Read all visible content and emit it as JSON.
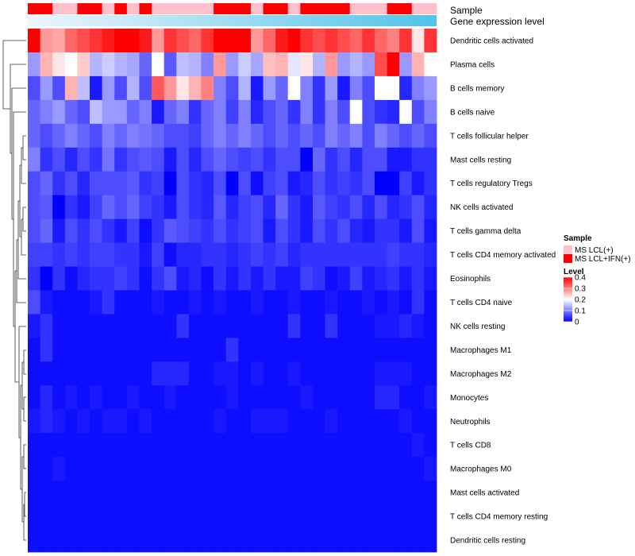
{
  "chart_data": {
    "type": "heatmap",
    "title": "",
    "annotation_labels": {
      "sample": "Sample",
      "gene_expression": "Gene expression level"
    },
    "rows": [
      "Dendritic cells activated",
      "Plasma cells",
      "B cells memory",
      "B cells naive",
      "T cells follicular helper",
      "Mast cells resting",
      "T cells regulatory  Tregs",
      "NK cells activated",
      "T cells gamma delta",
      "T cells CD4 memory activated",
      "Eosinophils",
      "T cells CD4 naive",
      "NK cells resting",
      "Macrophages M1",
      "Macrophages M2",
      "Monocytes",
      "Neutrophils",
      "T cells CD8",
      "Macrophages M0",
      "Mast cells activated",
      "T cells CD4 memory resting",
      "Dendritic cells resting"
    ],
    "sample_groups": [
      "MS LCL+IFN(+)",
      "MS LCL+IFN(+)",
      "MS LCL(+)",
      "MS LCL(+)",
      "MS LCL+IFN(+)",
      "MS LCL+IFN(+)",
      "MS LCL(+)",
      "MS LCL+IFN(+)",
      "MS LCL(+)",
      "MS LCL+IFN(+)",
      "MS LCL(+)",
      "MS LCL(+)",
      "MS LCL(+)",
      "MS LCL(+)",
      "MS LCL(+)",
      "MS LCL+IFN(+)",
      "MS LCL+IFN(+)",
      "MS LCL+IFN(+)",
      "MS LCL(+)",
      "MS LCL+IFN(+)",
      "MS LCL+IFN(+)",
      "MS LCL(+)",
      "MS LCL+IFN(+)",
      "MS LCL+IFN(+)",
      "MS LCL+IFN(+)",
      "MS LCL+IFN(+)",
      "MS LCL(+)",
      "MS LCL(+)",
      "MS LCL(+)",
      "MS LCL+IFN(+)",
      "MS LCL+IFN(+)",
      "MS LCL(+)",
      "MS LCL(+)"
    ],
    "gene_expression_gradient": {
      "from": "#eef6fb",
      "to": "#4fc3ea"
    },
    "values": [
      [
        0.4,
        0.28,
        0.27,
        0.32,
        0.34,
        0.36,
        0.38,
        0.4,
        0.4,
        0.38,
        0.28,
        0.36,
        0.34,
        0.32,
        0.36,
        0.4,
        0.4,
        0.4,
        0.28,
        0.32,
        0.38,
        0.4,
        0.36,
        0.34,
        0.36,
        0.34,
        0.32,
        0.36,
        0.32,
        0.3,
        0.36,
        0.22,
        0.36
      ],
      [
        0.12,
        0.26,
        0.22,
        0.2,
        0.24,
        0.14,
        0.16,
        0.14,
        0.13,
        0.08,
        0.2,
        0.07,
        0.15,
        0.14,
        0.1,
        0.28,
        0.12,
        0.16,
        0.13,
        0.25,
        0.26,
        0.18,
        0.22,
        0.14,
        0.28,
        0.12,
        0.14,
        0.12,
        0.34,
        0.4,
        0.12,
        0.26,
        0.2
      ],
      [
        0.06,
        0.12,
        0.06,
        0.26,
        0.15,
        0.02,
        0.12,
        0.06,
        0.14,
        0.06,
        0.33,
        0.28,
        0.22,
        0.26,
        0.3,
        0.1,
        0.06,
        0.14,
        0.02,
        0.12,
        0.08,
        0.2,
        0.1,
        0.04,
        0.12,
        0.02,
        0.1,
        0.06,
        0.2,
        0.2,
        0.03,
        0.1,
        0.12
      ],
      [
        0.08,
        0.1,
        0.12,
        0.08,
        0.06,
        0.15,
        0.12,
        0.12,
        0.08,
        0.1,
        0.02,
        0.08,
        0.1,
        0.04,
        0.08,
        0.1,
        0.05,
        0.1,
        0.03,
        0.06,
        0.08,
        0.04,
        0.1,
        0.04,
        0.1,
        0.06,
        0.2,
        0.06,
        0.04,
        0.03,
        0.2,
        0.06,
        0.1
      ],
      [
        0.08,
        0.06,
        0.08,
        0.1,
        0.08,
        0.06,
        0.1,
        0.08,
        0.1,
        0.09,
        0.08,
        0.06,
        0.06,
        0.05,
        0.08,
        0.1,
        0.08,
        0.1,
        0.08,
        0.06,
        0.08,
        0.06,
        0.08,
        0.06,
        0.1,
        0.08,
        0.1,
        0.06,
        0.1,
        0.08,
        0.06,
        0.08,
        0.06
      ],
      [
        0.1,
        0.04,
        0.06,
        0.03,
        0.06,
        0.04,
        0.09,
        0.04,
        0.06,
        0.07,
        0.06,
        0.02,
        0.06,
        0.03,
        0.06,
        0.08,
        0.06,
        0.05,
        0.06,
        0.04,
        0.06,
        0.06,
        0.0,
        0.08,
        0.04,
        0.06,
        0.03,
        0.06,
        0.06,
        0.02,
        0.02,
        0.04,
        0.04
      ],
      [
        0.06,
        0.08,
        0.04,
        0.06,
        0.03,
        0.06,
        0.06,
        0.06,
        0.07,
        0.04,
        0.05,
        0.0,
        0.06,
        0.04,
        0.03,
        0.06,
        0.0,
        0.06,
        0.01,
        0.05,
        0.06,
        0.02,
        0.03,
        0.06,
        0.04,
        0.05,
        0.04,
        0.06,
        0.0,
        0.0,
        0.05,
        0.02,
        0.04
      ],
      [
        0.06,
        0.07,
        0.0,
        0.04,
        0.02,
        0.05,
        0.08,
        0.06,
        0.08,
        0.05,
        0.04,
        0.02,
        0.06,
        0.04,
        0.03,
        0.07,
        0.03,
        0.05,
        0.06,
        0.03,
        0.08,
        0.04,
        0.02,
        0.07,
        0.05,
        0.04,
        0.06,
        0.03,
        0.06,
        0.03,
        0.04,
        0.06,
        0.03
      ],
      [
        0.06,
        0.08,
        0.02,
        0.06,
        0.04,
        0.06,
        0.04,
        0.02,
        0.05,
        0.01,
        0.04,
        0.07,
        0.06,
        0.05,
        0.04,
        0.06,
        0.04,
        0.05,
        0.06,
        0.02,
        0.06,
        0.04,
        0.02,
        0.06,
        0.04,
        0.06,
        0.03,
        0.02,
        0.04,
        0.04,
        0.02,
        0.06,
        0.02
      ],
      [
        0.05,
        0.05,
        0.04,
        0.05,
        0.04,
        0.05,
        0.05,
        0.04,
        0.04,
        0.02,
        0.05,
        0.01,
        0.03,
        0.03,
        0.04,
        0.04,
        0.03,
        0.04,
        0.05,
        0.04,
        0.05,
        0.03,
        0.04,
        0.04,
        0.04,
        0.04,
        0.04,
        0.04,
        0.04,
        0.05,
        0.04,
        0.04,
        0.03
      ],
      [
        0.04,
        0.0,
        0.04,
        0.01,
        0.03,
        0.04,
        0.04,
        0.05,
        0.04,
        0.01,
        0.04,
        0.06,
        0.02,
        0.03,
        0.01,
        0.04,
        0.02,
        0.04,
        0.02,
        0.04,
        0.02,
        0.02,
        0.05,
        0.04,
        0.01,
        0.02,
        0.05,
        0.02,
        0.03,
        0.04,
        0.02,
        0.04,
        0.02
      ],
      [
        0.06,
        0.02,
        0.01,
        0.01,
        0.01,
        0.02,
        0.04,
        0.01,
        0.01,
        0.01,
        0.02,
        0.01,
        0.01,
        0.02,
        0.01,
        0.02,
        0.01,
        0.01,
        0.02,
        0.01,
        0.01,
        0.02,
        0.01,
        0.01,
        0.02,
        0.01,
        0.01,
        0.02,
        0.01,
        0.02,
        0.01,
        0.04,
        0.01
      ],
      [
        0.02,
        0.04,
        0.01,
        0.01,
        0.01,
        0.01,
        0.01,
        0.01,
        0.01,
        0.01,
        0.01,
        0.01,
        0.04,
        0.01,
        0.01,
        0.01,
        0.01,
        0.01,
        0.01,
        0.01,
        0.01,
        0.04,
        0.01,
        0.01,
        0.04,
        0.01,
        0.01,
        0.01,
        0.02,
        0.02,
        0.03,
        0.02,
        0.01
      ],
      [
        0.01,
        0.04,
        0.01,
        0.01,
        0.01,
        0.01,
        0.01,
        0.01,
        0.01,
        0.01,
        0.01,
        0.01,
        0.01,
        0.01,
        0.01,
        0.01,
        0.04,
        0.01,
        0.01,
        0.01,
        0.01,
        0.01,
        0.01,
        0.01,
        0.01,
        0.01,
        0.01,
        0.01,
        0.01,
        0.01,
        0.01,
        0.01,
        0.01
      ],
      [
        0.01,
        0.01,
        0.01,
        0.01,
        0.01,
        0.01,
        0.01,
        0.01,
        0.01,
        0.01,
        0.03,
        0.03,
        0.03,
        0.01,
        0.01,
        0.02,
        0.02,
        0.01,
        0.02,
        0.01,
        0.01,
        0.02,
        0.01,
        0.01,
        0.01,
        0.01,
        0.01,
        0.01,
        0.02,
        0.02,
        0.02,
        0.01,
        0.01
      ],
      [
        0.01,
        0.03,
        0.01,
        0.02,
        0.01,
        0.02,
        0.01,
        0.01,
        0.02,
        0.01,
        0.01,
        0.02,
        0.01,
        0.01,
        0.01,
        0.01,
        0.02,
        0.01,
        0.01,
        0.01,
        0.01,
        0.01,
        0.02,
        0.01,
        0.01,
        0.01,
        0.01,
        0.01,
        0.03,
        0.03,
        0.01,
        0.01,
        0.02
      ],
      [
        0.02,
        0.03,
        0.02,
        0.01,
        0.02,
        0.01,
        0.02,
        0.02,
        0.01,
        0.02,
        0.01,
        0.01,
        0.01,
        0.01,
        0.01,
        0.02,
        0.01,
        0.01,
        0.02,
        0.02,
        0.02,
        0.01,
        0.01,
        0.01,
        0.02,
        0.01,
        0.01,
        0.01,
        0.01,
        0.01,
        0.02,
        0.01,
        0.01
      ],
      [
        0.01,
        0.01,
        0.01,
        0.01,
        0.01,
        0.01,
        0.01,
        0.01,
        0.01,
        0.01,
        0.01,
        0.01,
        0.01,
        0.01,
        0.01,
        0.01,
        0.01,
        0.01,
        0.01,
        0.01,
        0.01,
        0.01,
        0.01,
        0.01,
        0.01,
        0.01,
        0.01,
        0.01,
        0.01,
        0.01,
        0.01,
        0.02,
        0.01
      ],
      [
        0.01,
        0.01,
        0.02,
        0.01,
        0.01,
        0.01,
        0.01,
        0.01,
        0.01,
        0.01,
        0.01,
        0.01,
        0.01,
        0.01,
        0.01,
        0.01,
        0.01,
        0.01,
        0.01,
        0.01,
        0.01,
        0.01,
        0.01,
        0.01,
        0.01,
        0.01,
        0.01,
        0.01,
        0.01,
        0.01,
        0.01,
        0.01,
        0.02
      ],
      [
        0.01,
        0.01,
        0.01,
        0.01,
        0.01,
        0.01,
        0.01,
        0.01,
        0.01,
        0.01,
        0.01,
        0.01,
        0.01,
        0.01,
        0.01,
        0.01,
        0.01,
        0.01,
        0.01,
        0.01,
        0.01,
        0.01,
        0.01,
        0.01,
        0.01,
        0.01,
        0.01,
        0.01,
        0.01,
        0.01,
        0.01,
        0.01,
        0.01
      ],
      [
        0.01,
        0.01,
        0.01,
        0.01,
        0.01,
        0.01,
        0.01,
        0.01,
        0.01,
        0.01,
        0.01,
        0.01,
        0.01,
        0.01,
        0.01,
        0.01,
        0.01,
        0.01,
        0.01,
        0.01,
        0.01,
        0.01,
        0.01,
        0.01,
        0.01,
        0.01,
        0.01,
        0.01,
        0.01,
        0.01,
        0.01,
        0.01,
        0.01
      ],
      [
        0.01,
        0.01,
        0.01,
        0.01,
        0.01,
        0.01,
        0.01,
        0.01,
        0.01,
        0.01,
        0.01,
        0.01,
        0.01,
        0.01,
        0.01,
        0.01,
        0.01,
        0.01,
        0.01,
        0.01,
        0.01,
        0.01,
        0.01,
        0.01,
        0.01,
        0.01,
        0.01,
        0.01,
        0.01,
        0.01,
        0.01,
        0.01,
        0.01
      ]
    ],
    "legend": {
      "sample_title": "Sample",
      "sample_entries": [
        {
          "label": "MS LCL(+)",
          "color": "#ffc0cb"
        },
        {
          "label": "MS LCL+IFN(+)",
          "color": "#ff0000"
        }
      ],
      "level_title": "Level",
      "level_ticks": [
        "0.4",
        "0.3",
        "0.2",
        "0.1",
        "0"
      ],
      "level_range": [
        0,
        0.4
      ],
      "palette": {
        "low": "#0000ff",
        "mid": "#ffffff",
        "high": "#ff0000",
        "mid_value": 0.2
      },
      "position": "right"
    }
  }
}
